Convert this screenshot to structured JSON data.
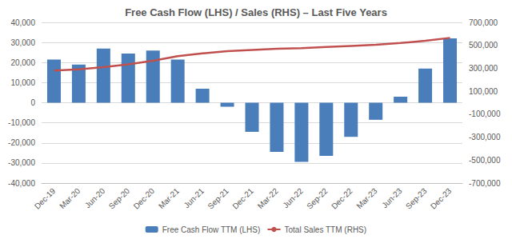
{
  "chart_data": {
    "type": "bar",
    "title": "Free Cash Flow (LHS) / Sales (RHS) – Last Five Years",
    "categories": [
      "Dec-19",
      "Mar-20",
      "Jun-20",
      "Sep-20",
      "Dec-20",
      "Mar-21",
      "Jun-21",
      "Sep-21",
      "Dec-21",
      "Mar-22",
      "Jun-22",
      "Sep-22",
      "Dec-22",
      "Mar-23",
      "Jun-23",
      "Sep-23",
      "Dec-23"
    ],
    "series": [
      {
        "name": "Free Cash Flow TTM (LHS)",
        "type": "bar",
        "color": "#4a7ebb",
        "values": [
          21500,
          19000,
          27000,
          24500,
          26000,
          21500,
          7000,
          -2000,
          -14500,
          -24500,
          -29500,
          -26500,
          -17000,
          -8500,
          3000,
          17000,
          32000
        ]
      },
      {
        "name": "Total Sales TTM (RHS)",
        "type": "line",
        "color": "#c0504d",
        "axis": "y2",
        "values": [
          280000,
          290000,
          310000,
          335000,
          365000,
          405000,
          430000,
          450000,
          460000,
          470000,
          475000,
          485000,
          495000,
          505000,
          520000,
          540000,
          565000
        ]
      }
    ],
    "ylim": [
      -40000,
      40000
    ],
    "yticks": [
      {
        "value": -40000,
        "label": "-40,000"
      },
      {
        "value": -30000,
        "label": "-30,000"
      },
      {
        "value": -20000,
        "label": "-20,000"
      },
      {
        "value": -10000,
        "label": "-10,000"
      },
      0,
      {
        "value": 10000,
        "label": "10,000"
      },
      {
        "value": 20000,
        "label": "20,000"
      },
      {
        "value": 30000,
        "label": "30,000"
      },
      {
        "value": 40000,
        "label": "40,000"
      }
    ],
    "y2lim": [
      -700000,
      700000
    ],
    "y2ticks": [
      {
        "value": -700000,
        "label": "-700,000"
      },
      {
        "value": -500000,
        "label": "-500,000"
      },
      {
        "value": -300000,
        "label": "-300,000"
      },
      {
        "value": -100000,
        "label": "-100,000"
      },
      {
        "value": 100000,
        "label": "100,000"
      },
      {
        "value": 300000,
        "label": "300,000"
      },
      {
        "value": 500000,
        "label": "500,000"
      },
      {
        "value": 700000,
        "label": "700,000"
      }
    ],
    "grid": true,
    "legend": "bottom"
  }
}
